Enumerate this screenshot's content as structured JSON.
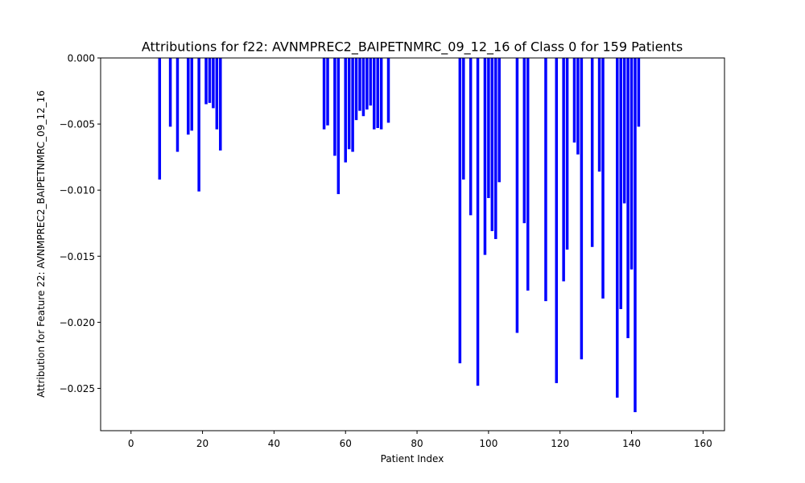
{
  "chart_data": {
    "type": "bar",
    "title": "Attributions for f22: AVNMPREC2_BAIPETNMRC_09_12_16 of Class 0 for 159 Patients",
    "xlabel": "Patient Index",
    "ylabel": "Attribution for Feature 22: AVNMPREC2_BAIPETNMRC_09_12_16",
    "xlim": [
      -8.5,
      166
    ],
    "ylim": [
      -0.0282,
      0.0
    ],
    "x_ticks": [
      0,
      20,
      40,
      60,
      80,
      100,
      120,
      140,
      160
    ],
    "x_tick_labels": [
      "0",
      "20",
      "40",
      "60",
      "80",
      "100",
      "120",
      "140",
      "160"
    ],
    "y_ticks": [
      0.0,
      -0.005,
      -0.01,
      -0.015,
      -0.02,
      -0.025
    ],
    "y_tick_labels": [
      "0.000",
      "−0.005",
      "−0.010",
      "−0.015",
      "−0.020",
      "−0.025"
    ],
    "bar_color": "#0000ff",
    "grid": false,
    "series": [
      {
        "x": [
          8,
          11,
          13,
          16,
          17,
          19,
          21,
          22,
          23,
          24,
          25,
          54,
          55,
          57,
          58,
          60,
          61,
          62,
          63,
          64,
          65,
          66,
          67,
          68,
          69,
          70,
          72,
          92,
          93,
          95,
          97,
          99,
          100,
          101,
          102,
          103,
          108,
          110,
          111,
          116,
          119,
          121,
          122,
          124,
          125,
          126,
          129,
          131,
          132,
          136,
          137,
          138,
          139,
          140,
          141,
          142
        ],
        "values": [
          -0.0092,
          -0.0052,
          -0.0071,
          -0.0058,
          -0.0055,
          -0.0101,
          -0.0035,
          -0.0034,
          -0.0038,
          -0.0054,
          -0.007,
          -0.0054,
          -0.0051,
          -0.0074,
          -0.0103,
          -0.0079,
          -0.0069,
          -0.0071,
          -0.0047,
          -0.004,
          -0.0044,
          -0.0039,
          -0.0036,
          -0.0054,
          -0.0053,
          -0.0054,
          -0.0049,
          -0.0231,
          -0.0092,
          -0.0119,
          -0.0248,
          -0.0149,
          -0.0106,
          -0.0131,
          -0.0137,
          -0.0094,
          -0.0208,
          -0.0125,
          -0.0176,
          -0.0184,
          -0.0246,
          -0.0169,
          -0.0145,
          -0.0064,
          -0.0073,
          -0.0228,
          -0.0143,
          -0.0086,
          -0.0182,
          -0.0257,
          -0.019,
          -0.011,
          -0.0212,
          -0.016,
          -0.0268,
          -0.0052
        ]
      }
    ]
  }
}
